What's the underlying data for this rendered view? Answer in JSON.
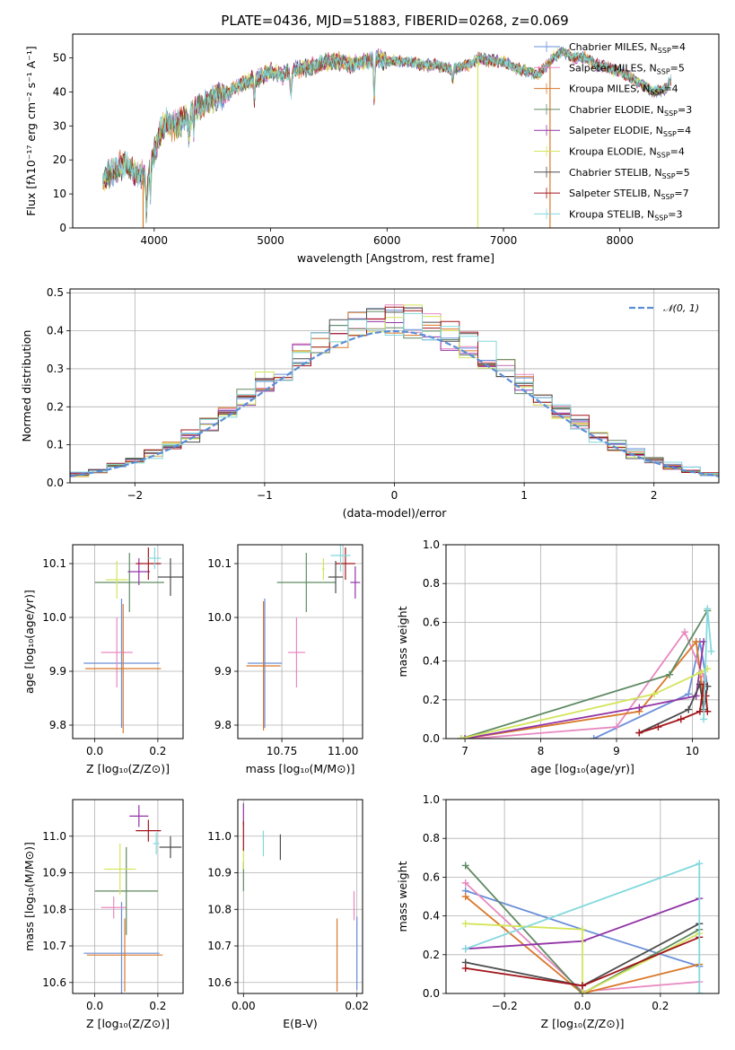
{
  "colors": [
    "#6a8fd8",
    "#e889c0",
    "#d9782b",
    "#5f8a62",
    "#9334a6",
    "#d3e55a",
    "#4d4d4d",
    "#a3141b",
    "#82d8dc"
  ],
  "chart_data": [
    {
      "id": "spectrum",
      "type": "line",
      "title": "PLATE=0436, MJD=51883, FIBERID=0268, z=0.069",
      "xlabel": "wavelength [Angstrom, rest frame]",
      "ylabel": "Flux [fλ10⁻¹⁷ erg cm⁻² s⁻¹ A⁻¹]",
      "xlim": [
        3300,
        8850
      ],
      "ylim": [
        0,
        57
      ],
      "xticks": [
        4000,
        5000,
        6000,
        7000,
        8000
      ],
      "yticks": [
        0,
        10,
        20,
        30,
        40,
        50
      ],
      "grid": false,
      "legend_position": "upper-right",
      "continuum": {
        "x": [
          3550,
          3650,
          3750,
          3850,
          3950,
          4000,
          4050,
          4100,
          4150,
          4200,
          4300,
          4400,
          4500,
          4600,
          4700,
          4800,
          4900,
          5000,
          5100,
          5200,
          5300,
          5400,
          5500,
          5600,
          5700,
          5800,
          5900,
          6000,
          6100,
          6200,
          6300,
          6400,
          6500,
          6600,
          6700,
          6800,
          6900,
          7000,
          7100,
          7200,
          7300,
          7400,
          7500,
          7600,
          7700,
          7800,
          7900,
          8000,
          8100,
          8200,
          8300,
          8400,
          8450
        ],
        "y": [
          13,
          17,
          19,
          16,
          15,
          22,
          28,
          31,
          30,
          31,
          33,
          36,
          38,
          39,
          41,
          43,
          44,
          46,
          45,
          47,
          47,
          48,
          49,
          49,
          48,
          49,
          50,
          49,
          49,
          49,
          48,
          48,
          47,
          47,
          48,
          50,
          49,
          49,
          47,
          46,
          45,
          49,
          52,
          50,
          50,
          48,
          47,
          46,
          44,
          42,
          40,
          41,
          44
        ]
      },
      "series": [
        {
          "name": "Chabrier MILES",
          "nssp": 4
        },
        {
          "name": "Salpeter MILES",
          "nssp": 5
        },
        {
          "name": "Kroupa MILES",
          "nssp": 4
        },
        {
          "name": "Chabrier ELODIE",
          "nssp": 3
        },
        {
          "name": "Salpeter ELODIE",
          "nssp": 4
        },
        {
          "name": "Kroupa ELODIE",
          "nssp": 4
        },
        {
          "name": "Chabrier STELIB",
          "nssp": 5
        },
        {
          "name": "Salpeter STELIB",
          "nssp": 7
        },
        {
          "name": "Kroupa STELIB",
          "nssp": 3
        }
      ],
      "nssp_label": "N",
      "nssp_subscript": "SSP",
      "spikes": [
        {
          "x": 3905,
          "series": 2
        },
        {
          "x": 6780,
          "series": 5
        },
        {
          "x": 7400,
          "series": 2
        }
      ]
    },
    {
      "id": "residuals",
      "type": "histogram",
      "xlabel": "(data-model)/error",
      "ylabel": "Normed distribution",
      "xlim": [
        -2.5,
        2.5
      ],
      "ylim": [
        0,
        0.51
      ],
      "xticks": [
        -2,
        -1,
        0,
        1,
        2
      ],
      "xtick_labels": [
        "−2",
        "−1",
        "0",
        "1",
        "2"
      ],
      "yticks": [
        0.0,
        0.1,
        0.2,
        0.3,
        0.4,
        0.5
      ],
      "grid": true,
      "legend_position": "upper-right",
      "reference_curve": {
        "name": "𝒩(0, 1)",
        "mean": 0,
        "sigma": 1,
        "color": "#5b8ed6"
      }
    },
    {
      "id": "age-vs-Z",
      "type": "errorbar",
      "xlabel": "Z [log₁₀(Z/Z⊙)]",
      "ylabel": "age  [log₁₀(age/yr)]",
      "xlim": [
        -0.07,
        0.28
      ],
      "ylim": [
        9.775,
        10.135
      ],
      "xticks": [
        0.0,
        0.2
      ],
      "xtick_labels": [
        "0.0",
        "0.2"
      ],
      "yticks": [
        9.8,
        9.9,
        10.0,
        10.1
      ],
      "ytick_labels": [
        "9.8",
        "9.9",
        "10.0",
        "10.1"
      ],
      "grid": true,
      "points": [
        {
          "x": 0.085,
          "xerr": 0.12,
          "y": 9.915,
          "yerr": 0.12,
          "series": 0
        },
        {
          "x": 0.07,
          "xerr": 0.05,
          "y": 9.935,
          "yerr": 0.065,
          "series": 1
        },
        {
          "x": 0.09,
          "xerr": 0.12,
          "y": 9.905,
          "yerr": 0.12,
          "series": 2
        },
        {
          "x": 0.11,
          "xerr": 0.11,
          "y": 10.065,
          "yerr": 0.055,
          "series": 3
        },
        {
          "x": 0.14,
          "xerr": 0.035,
          "y": 10.085,
          "yerr": 0.025,
          "series": 4
        },
        {
          "x": 0.07,
          "xerr": 0.035,
          "y": 10.07,
          "yerr": 0.035,
          "series": 5
        },
        {
          "x": 0.24,
          "xerr": 0.04,
          "y": 10.075,
          "yerr": 0.035,
          "series": 6
        },
        {
          "x": 0.17,
          "xerr": 0.04,
          "y": 10.1,
          "yerr": 0.03,
          "series": 7
        },
        {
          "x": 0.19,
          "xerr": 0.02,
          "y": 10.11,
          "yerr": 0.02,
          "series": 8
        }
      ]
    },
    {
      "id": "age-vs-mass",
      "type": "errorbar",
      "xlabel": "mass [log₁₀(M/M⊙)]",
      "ylabel": "",
      "xlim": [
        10.57,
        11.08
      ],
      "ylim": [
        9.775,
        10.135
      ],
      "xticks": [
        10.75,
        11.0
      ],
      "xtick_labels": [
        "10.75",
        "11.00"
      ],
      "yticks": [
        9.8,
        9.9,
        10.0,
        10.1
      ],
      "ytick_labels": [
        "9.8",
        "9.9",
        "10.0",
        "10.1"
      ],
      "grid": true,
      "points": [
        {
          "x": 10.68,
          "xerr": 0.07,
          "y": 9.915,
          "yerr": 0.12,
          "series": 0
        },
        {
          "x": 10.81,
          "xerr": 0.035,
          "y": 9.935,
          "yerr": 0.065,
          "series": 1
        },
        {
          "x": 10.675,
          "xerr": 0.07,
          "y": 9.91,
          "yerr": 0.12,
          "series": 2
        },
        {
          "x": 10.85,
          "xerr": 0.12,
          "y": 10.065,
          "yerr": 0.055,
          "series": 3
        },
        {
          "x": 11.05,
          "xerr": 0.02,
          "y": 10.065,
          "yerr": 0.03,
          "series": 4
        },
        {
          "x": 10.92,
          "xerr": 0.005,
          "y": 10.09,
          "yerr": 0.02,
          "series": 5
        },
        {
          "x": 10.97,
          "xerr": 0.03,
          "y": 10.075,
          "yerr": 0.03,
          "series": 6
        },
        {
          "x": 11.01,
          "xerr": 0.04,
          "y": 10.1,
          "yerr": 0.03,
          "series": 7
        },
        {
          "x": 10.99,
          "xerr": 0.04,
          "y": 10.115,
          "yerr": 0.03,
          "series": 8
        }
      ]
    },
    {
      "id": "weight-vs-age",
      "type": "line",
      "xlabel": "age  [log₁₀(age/yr)]",
      "ylabel": "mass weight",
      "xlim": [
        6.75,
        10.35
      ],
      "ylim": [
        0,
        1.0
      ],
      "xticks": [
        7,
        8,
        9,
        10
      ],
      "xtick_labels": [
        "7",
        "8",
        "9",
        "10"
      ],
      "yticks": [
        0.0,
        0.2,
        0.4,
        0.6,
        0.8,
        1.0
      ],
      "ytick_labels": [
        "0.0",
        "0.2",
        "0.4",
        "0.6",
        "0.8",
        "1.0"
      ],
      "grid": true,
      "series": [
        {
          "series": 0,
          "x": [
            8.7,
            9.95,
            10.1,
            10.2
          ],
          "y": [
            0.0,
            0.23,
            0.5,
            0.27
          ]
        },
        {
          "series": 1,
          "x": [
            7.1,
            9.0,
            9.9,
            10.15
          ],
          "y": [
            0.0,
            0.06,
            0.55,
            0.32
          ]
        },
        {
          "series": 2,
          "x": [
            7.0,
            9.3,
            10.05,
            10.15
          ],
          "y": [
            0.0,
            0.14,
            0.5,
            0.2
          ]
        },
        {
          "series": 3,
          "x": [
            6.95,
            9.7,
            10.2
          ],
          "y": [
            0.0,
            0.33,
            0.66
          ]
        },
        {
          "series": 4,
          "x": [
            7.0,
            9.3,
            10.05,
            10.15
          ],
          "y": [
            0.0,
            0.16,
            0.22,
            0.5
          ]
        },
        {
          "series": 5,
          "x": [
            6.95,
            9.5,
            10.1,
            10.2
          ],
          "y": [
            0.0,
            0.23,
            0.34,
            0.36
          ]
        },
        {
          "series": 6,
          "x": [
            9.3,
            9.95,
            10.1,
            10.15,
            10.2
          ],
          "y": [
            0.03,
            0.15,
            0.28,
            0.15,
            0.27
          ]
        },
        {
          "series": 7,
          "x": [
            9.3,
            9.55,
            9.85,
            10.1,
            10.15,
            10.18,
            10.2
          ],
          "y": [
            0.03,
            0.06,
            0.1,
            0.14,
            0.28,
            0.22,
            0.14
          ]
        },
        {
          "series": 8,
          "x": [
            10.15,
            10.2,
            10.25
          ],
          "y": [
            0.1,
            0.67,
            0.45
          ]
        }
      ]
    },
    {
      "id": "mass-vs-Z",
      "type": "errorbar",
      "xlabel": "Z [log₁₀(Z/Z⊙)]",
      "ylabel": "mass [log₁₀(M/M⊙)]",
      "xlim": [
        -0.07,
        0.28
      ],
      "ylim": [
        10.57,
        11.1
      ],
      "xticks": [
        0.0,
        0.2
      ],
      "xtick_labels": [
        "0.0",
        "0.2"
      ],
      "yticks": [
        10.6,
        10.7,
        10.8,
        10.9,
        11.0
      ],
      "ytick_labels": [
        "10.6",
        "10.7",
        "10.8",
        "10.9",
        "11.0"
      ],
      "grid": true,
      "points": [
        {
          "x": 0.085,
          "xerr": 0.12,
          "y": 10.68,
          "yerr": 0.14,
          "series": 0
        },
        {
          "x": 0.06,
          "xerr": 0.04,
          "y": 10.805,
          "yerr": 0.03,
          "series": 1
        },
        {
          "x": 0.095,
          "xerr": 0.12,
          "y": 10.675,
          "yerr": 0.1,
          "series": 2
        },
        {
          "x": 0.1,
          "xerr": 0.1,
          "y": 10.85,
          "yerr": 0.12,
          "series": 3
        },
        {
          "x": 0.14,
          "xerr": 0.03,
          "y": 11.055,
          "yerr": 0.03,
          "series": 4
        },
        {
          "x": 0.08,
          "xerr": 0.05,
          "y": 10.91,
          "yerr": 0.07,
          "series": 5
        },
        {
          "x": 0.24,
          "xerr": 0.035,
          "y": 10.97,
          "yerr": 0.03,
          "series": 6
        },
        {
          "x": 0.17,
          "xerr": 0.04,
          "y": 11.015,
          "yerr": 0.03,
          "series": 7
        },
        {
          "x": 0.195,
          "xerr": 0.01,
          "y": 10.98,
          "yerr": 0.03,
          "series": 8
        }
      ]
    },
    {
      "id": "mass-vs-EBV",
      "type": "errorbar",
      "xlabel": "E(B-V)",
      "ylabel": "",
      "xlim": [
        -0.001,
        0.021
      ],
      "ylim": [
        10.57,
        11.1
      ],
      "xticks": [
        0.0,
        0.02
      ],
      "xtick_labels": [
        "0.00",
        "0.02"
      ],
      "yticks": [
        10.6,
        10.7,
        10.8,
        10.9,
        11.0
      ],
      "ytick_labels": [
        "10.6",
        "10.7",
        "10.8",
        "10.9",
        "11.0"
      ],
      "grid": true,
      "points": [
        {
          "x": 0.02,
          "xerr": 0.0,
          "y": 10.68,
          "yerr": 0.1,
          "series": 0
        },
        {
          "x": 0.0195,
          "xerr": 0.0,
          "y": 10.81,
          "yerr": 0.04,
          "series": 1
        },
        {
          "x": 0.0165,
          "xerr": 0.0,
          "y": 10.675,
          "yerr": 0.1,
          "series": 2
        },
        {
          "x": 0.0,
          "xerr": 0.0,
          "y": 10.89,
          "yerr": 0.04,
          "series": 3
        },
        {
          "x": 0.0,
          "xerr": 0.0,
          "y": 11.06,
          "yerr": 0.03,
          "series": 4
        },
        {
          "x": 0.0,
          "xerr": 0.0,
          "y": 10.94,
          "yerr": 0.03,
          "series": 5
        },
        {
          "x": 0.0065,
          "xerr": 0.0,
          "y": 10.97,
          "yerr": 0.035,
          "series": 6
        },
        {
          "x": 0.0,
          "xerr": 0.0,
          "y": 11.0,
          "yerr": 0.04,
          "series": 7
        },
        {
          "x": 0.0035,
          "xerr": 0.0,
          "y": 10.98,
          "yerr": 0.035,
          "series": 8
        }
      ]
    },
    {
      "id": "weight-vs-Z",
      "type": "line",
      "xlabel": "Z [log₁₀(Z/Z⊙)]",
      "ylabel": "mass weight",
      "xlim": [
        -0.35,
        0.35
      ],
      "ylim": [
        0,
        1.0
      ],
      "xticks": [
        -0.2,
        0.0,
        0.2
      ],
      "xtick_labels": [
        "−0.2",
        "0.0",
        "0.2"
      ],
      "yticks": [
        0.0,
        0.2,
        0.4,
        0.6,
        0.8,
        1.0
      ],
      "ytick_labels": [
        "0.0",
        "0.2",
        "0.4",
        "0.6",
        "0.8",
        "1.0"
      ],
      "grid": true,
      "series": [
        {
          "series": 0,
          "x": [
            -0.3,
            0.0,
            0.3
          ],
          "y": [
            0.53,
            0.33,
            0.14
          ]
        },
        {
          "series": 1,
          "x": [
            -0.3,
            0.0,
            0.3
          ],
          "y": [
            0.57,
            0.01,
            0.06
          ]
        },
        {
          "series": 2,
          "x": [
            -0.3,
            0.0,
            0.3
          ],
          "y": [
            0.5,
            0.0,
            0.15
          ]
        },
        {
          "series": 3,
          "x": [
            -0.3,
            0.0,
            0.3
          ],
          "y": [
            0.66,
            0.0,
            0.33
          ]
        },
        {
          "series": 4,
          "x": [
            -0.3,
            0.0,
            0.3
          ],
          "y": [
            0.23,
            0.27,
            0.49
          ]
        },
        {
          "series": 5,
          "x": [
            -0.3,
            0.0,
            0.0,
            0.3
          ],
          "y": [
            0.36,
            0.33,
            0.0,
            0.31
          ]
        },
        {
          "series": 6,
          "x": [
            -0.3,
            0.0,
            0.3
          ],
          "y": [
            0.16,
            0.04,
            0.36
          ]
        },
        {
          "series": 7,
          "x": [
            -0.3,
            0.0,
            0.3
          ],
          "y": [
            0.13,
            0.04,
            0.29
          ]
        },
        {
          "series": 8,
          "x": [
            -0.3,
            0.3,
            0.3
          ],
          "y": [
            0.23,
            0.67,
            0.0
          ]
        }
      ]
    }
  ]
}
